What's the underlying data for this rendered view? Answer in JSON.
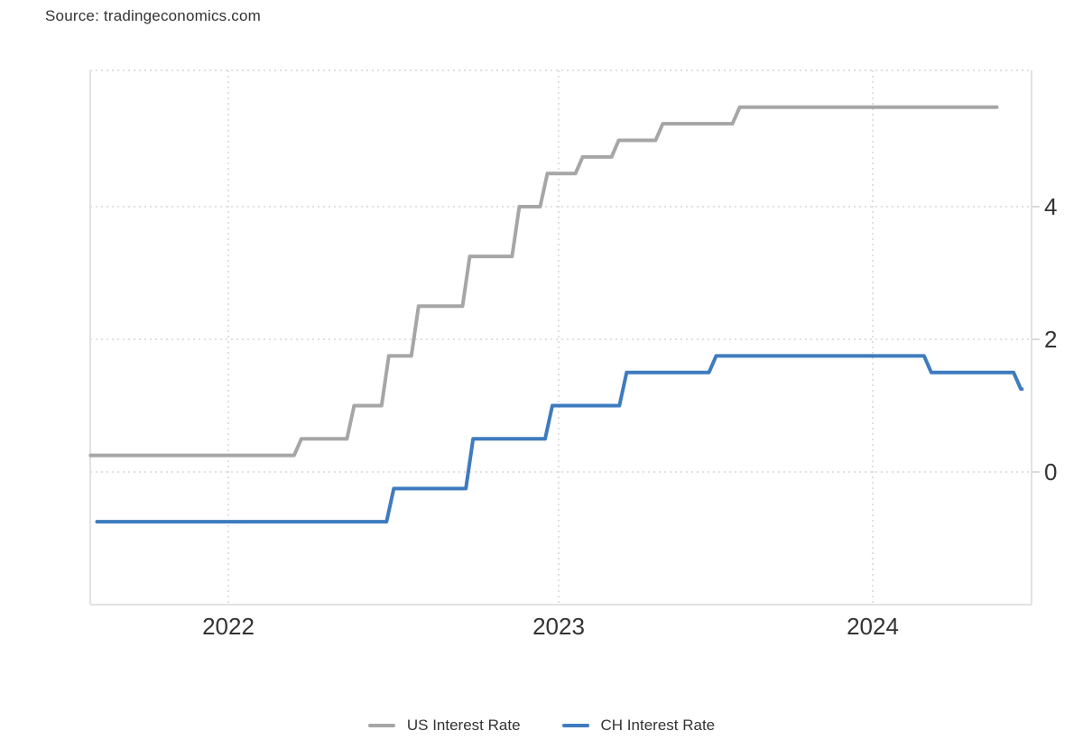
{
  "source_label": "Source: tradingeconomics.com",
  "chart_data": {
    "type": "line",
    "line_style": "step",
    "title": "",
    "grid": "dotted",
    "legend_position": "bottom",
    "x_ticks": [
      {
        "year": 2022,
        "label": "2022"
      },
      {
        "year": 2023,
        "label": "2023"
      },
      {
        "year": 2024,
        "label": "2024"
      }
    ],
    "y_ticks": [
      {
        "value": 4,
        "label": "4"
      },
      {
        "value": 2,
        "label": "2"
      },
      {
        "value": 0,
        "label": "0"
      }
    ],
    "xlim": [
      2021.57,
      2024.5
    ],
    "ylim": [
      -2.0,
      6.05
    ],
    "series": [
      {
        "name": "US Interest Rate",
        "color": "#a6a6a6",
        "unit": "%",
        "start": {
          "x": 2021.571,
          "value": 0.25
        },
        "steps": [
          {
            "x": 2022.21,
            "value": 0.5
          },
          {
            "x": 2022.37,
            "value": 1.0
          },
          {
            "x": 2022.475,
            "value": 1.75
          },
          {
            "x": 2022.565,
            "value": 2.5
          },
          {
            "x": 2022.72,
            "value": 3.25
          },
          {
            "x": 2022.87,
            "value": 4.0
          },
          {
            "x": 2022.955,
            "value": 4.5
          },
          {
            "x": 2023.065,
            "value": 4.75
          },
          {
            "x": 2023.18,
            "value": 5.0
          },
          {
            "x": 2023.32,
            "value": 5.25
          },
          {
            "x": 2023.565,
            "value": 5.5
          }
        ],
        "end_x": 2024.395,
        "end_value": 5.5
      },
      {
        "name": "CH Interest Rate",
        "color": "#3e7bbf",
        "unit": "%",
        "start": {
          "x": 2021.591,
          "value": -0.75
        },
        "steps": [
          {
            "x": 2022.49,
            "value": -0.25
          },
          {
            "x": 2022.73,
            "value": 0.5
          },
          {
            "x": 2022.97,
            "value": 1.0
          },
          {
            "x": 2023.205,
            "value": 1.5
          },
          {
            "x": 2023.49,
            "value": 1.75
          },
          {
            "x": 2024.175,
            "value": 1.5
          },
          {
            "x": 2024.46,
            "value": 1.25
          }
        ],
        "end_x": 2024.475,
        "end_value": 1.25
      }
    ],
    "colors": {
      "axis_border": "#e2e2e2",
      "gridline": "#e0e0e0",
      "tick_label": "#333333"
    }
  }
}
